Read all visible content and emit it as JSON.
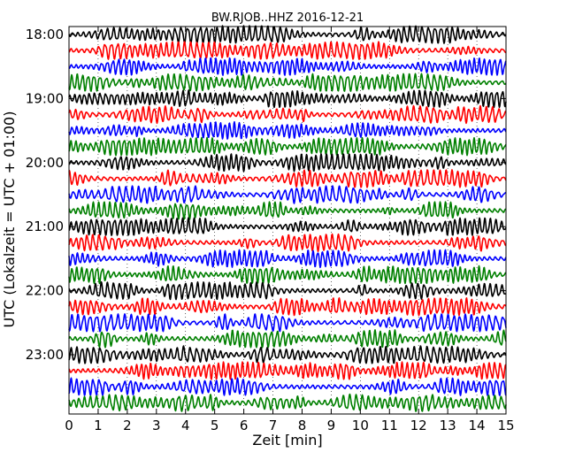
{
  "chart_data": {
    "type": "line",
    "title": "BW.RJOB..HHZ 2016-12-21",
    "xlabel": "Zeit  [min]",
    "ylabel": "UTC (Lokalzeit = UTC + 01:00)",
    "xlim": [
      0,
      15
    ],
    "x_ticks": [
      "0",
      "1",
      "2",
      "3",
      "4",
      "5",
      "6",
      "7",
      "8",
      "9",
      "10",
      "11",
      "12",
      "13",
      "14",
      "15"
    ],
    "y_ticks": [
      "18:00",
      "19:00",
      "20:00",
      "21:00",
      "22:00",
      "23:00"
    ],
    "trace_colors": [
      "#000000",
      "#ff0000",
      "#0000ff",
      "#008000"
    ],
    "trace_count": 24,
    "grid": "dotted vertical lines at each minute",
    "legend": "none"
  }
}
